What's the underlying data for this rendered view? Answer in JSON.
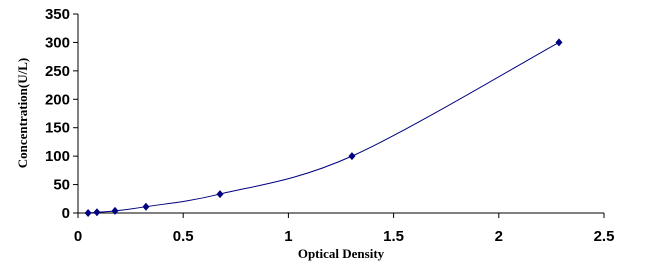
{
  "chart_data": {
    "type": "scatter",
    "x_label": "Optical Density",
    "y_label": "Concentration(U/L)",
    "series": [
      {
        "color": "#000080",
        "x": [
          0.048,
          0.09,
          0.176,
          0.323,
          0.675,
          1.302,
          2.286
        ],
        "values": [
          0,
          1.23,
          3.7,
          11.1,
          33.3,
          100,
          300
        ]
      }
    ],
    "xlim": [
      0,
      2.5
    ],
    "xticks": [
      0,
      0.5,
      1,
      1.5,
      2,
      2.5
    ],
    "ylim": [
      0,
      350
    ],
    "yticks": [
      0,
      50,
      100,
      150,
      200,
      250,
      300,
      350
    ],
    "grid": false,
    "smooth_line": true
  }
}
